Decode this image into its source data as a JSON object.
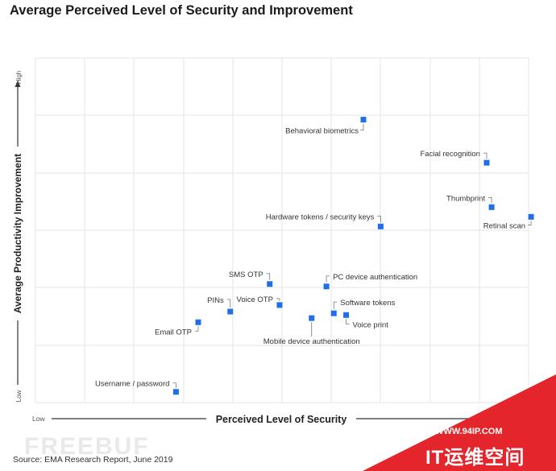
{
  "colors": {
    "point": "#1f6feb",
    "grid": "#e6e6e6",
    "axis": "#333333",
    "corner": "#e4262c"
  },
  "chart_data": {
    "type": "scatter",
    "title": "Average Perceived Level of Security and Improvement",
    "xlabel": "Perceived Level of Security",
    "ylabel": "Average Productivity Improvement",
    "x_low_label": "Low",
    "y_low_label": "Low",
    "y_high_label": "High",
    "xlim": [
      0,
      10
    ],
    "ylim": [
      0,
      10
    ],
    "grid": true,
    "points": [
      {
        "label": "Behavioral biometrics",
        "x": 6.65,
        "y": 8.21
      },
      {
        "label": "Facial recognition",
        "x": 9.15,
        "y": 6.96
      },
      {
        "label": "Thumbprint",
        "x": 9.25,
        "y": 5.67
      },
      {
        "label": "Retinal scan",
        "x": 10.05,
        "y": 5.39
      },
      {
        "label": "Hardware tokens / security keys",
        "x": 7.0,
        "y": 5.11
      },
      {
        "label": "SMS OTP",
        "x": 4.75,
        "y": 3.44
      },
      {
        "label": "PC device authentication",
        "x": 5.9,
        "y": 3.37
      },
      {
        "label": "Voice OTP",
        "x": 4.95,
        "y": 2.83
      },
      {
        "label": "PINs",
        "x": 3.95,
        "y": 2.64
      },
      {
        "label": "Software tokens",
        "x": 6.05,
        "y": 2.59
      },
      {
        "label": "Voice print",
        "x": 6.3,
        "y": 2.54
      },
      {
        "label": "Mobile device authentication",
        "x": 5.6,
        "y": 2.45
      },
      {
        "label": "Email OTP",
        "x": 3.3,
        "y": 2.33
      },
      {
        "label": "Username / password",
        "x": 2.85,
        "y": 0.31
      }
    ]
  },
  "source": "Source: EMA Research Report, June 2019",
  "watermark": "FREEBUF",
  "corner": {
    "url": "WWW.94IP.COM",
    "name": "IT运维空间"
  }
}
